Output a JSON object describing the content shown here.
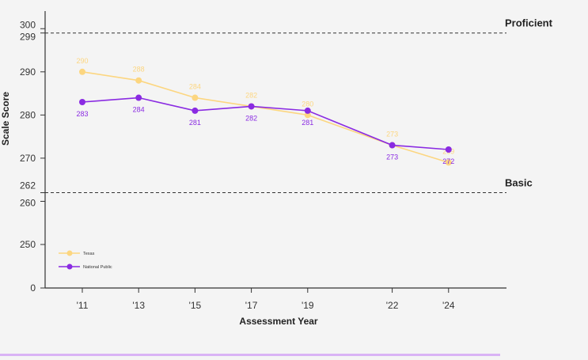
{
  "chart_data": {
    "type": "line",
    "categories": [
      "'11",
      "'13",
      "'15",
      "'17",
      "'19",
      "'22",
      "'24"
    ],
    "x_years": [
      2011,
      2013,
      2015,
      2017,
      2019,
      2022,
      2024
    ],
    "series": [
      {
        "name": "Texas",
        "values": [
          290,
          288,
          284,
          282,
          280,
          273,
          269
        ],
        "labels": [
          "290",
          "288",
          "284",
          "282",
          "280",
          "273",
          "269"
        ],
        "color": "#fcd680",
        "label_position": "above"
      },
      {
        "name": "National Public",
        "values": [
          283,
          284,
          281,
          282,
          281,
          273,
          272
        ],
        "labels": [
          "283",
          "284",
          "281",
          "282",
          "281",
          "273",
          "272"
        ],
        "color": "#8a2be2",
        "label_position": "below"
      }
    ],
    "xlabel": "Assessment Year",
    "ylabel": "Scale Score",
    "y_ticks": [
      "0",
      "250",
      "260",
      "262",
      "270",
      "280",
      "290",
      "299",
      "300"
    ],
    "axis_break": true,
    "reference_lines": [
      {
        "value": 299,
        "label": "Proficient"
      },
      {
        "value": 262,
        "label": "Basic"
      }
    ],
    "legend_position": "bottom-left",
    "grid": false
  },
  "colors": {
    "background": "#f4f4f4",
    "axis": "#333333",
    "accent_bar": "#d9b3f5"
  }
}
